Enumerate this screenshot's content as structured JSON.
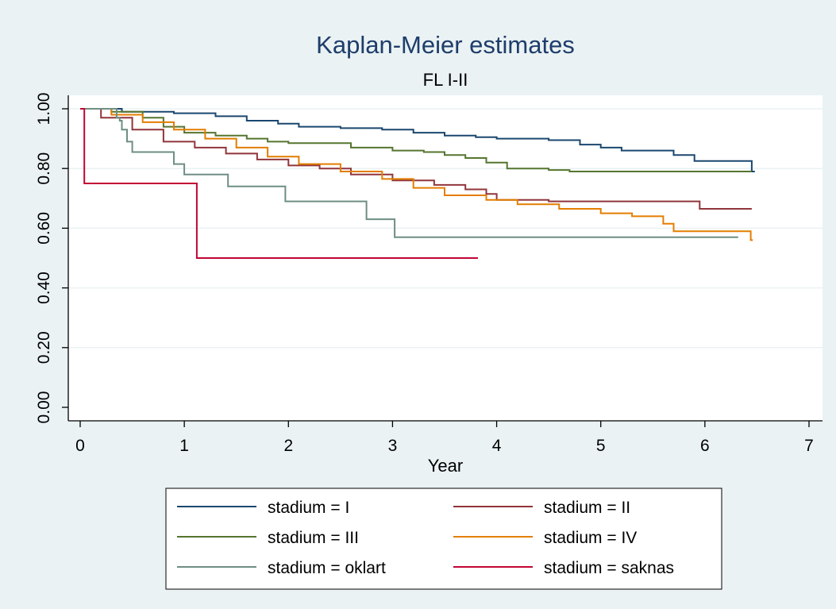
{
  "chart_data": {
    "type": "line",
    "title": "Kaplan-Meier estimates",
    "subtitle": "FL I-II",
    "xlabel": "Year",
    "ylabel": "",
    "xlim": [
      0,
      7
    ],
    "ylim": [
      0,
      1
    ],
    "x_ticks": [
      "0",
      "1",
      "2",
      "3",
      "4",
      "5",
      "6",
      "7"
    ],
    "y_ticks": [
      "0.00",
      "0.20",
      "0.40",
      "0.60",
      "0.80",
      "1.00"
    ],
    "grid": true,
    "legend_position": "bottom",
    "series": [
      {
        "name": "stadium = I",
        "color": "#1a476f",
        "points": [
          [
            0,
            1.0
          ],
          [
            0.4,
            0.99
          ],
          [
            0.9,
            0.985
          ],
          [
            1.3,
            0.975
          ],
          [
            1.6,
            0.96
          ],
          [
            1.9,
            0.95
          ],
          [
            2.1,
            0.94
          ],
          [
            2.5,
            0.935
          ],
          [
            2.9,
            0.93
          ],
          [
            3.2,
            0.92
          ],
          [
            3.5,
            0.91
          ],
          [
            3.8,
            0.905
          ],
          [
            4.0,
            0.9
          ],
          [
            4.3,
            0.9
          ],
          [
            4.5,
            0.895
          ],
          [
            4.8,
            0.88
          ],
          [
            5.0,
            0.87
          ],
          [
            5.2,
            0.86
          ],
          [
            5.6,
            0.86
          ],
          [
            5.7,
            0.845
          ],
          [
            5.9,
            0.825
          ],
          [
            6.1,
            0.825
          ],
          [
            6.45,
            0.825
          ],
          [
            6.45,
            0.79
          ],
          [
            6.48,
            0.79
          ]
        ]
      },
      {
        "name": "stadium = II",
        "color": "#90353b",
        "points": [
          [
            0,
            1.0
          ],
          [
            0.2,
            0.97
          ],
          [
            0.5,
            0.93
          ],
          [
            0.8,
            0.89
          ],
          [
            1.1,
            0.87
          ],
          [
            1.4,
            0.85
          ],
          [
            1.7,
            0.83
          ],
          [
            2.0,
            0.81
          ],
          [
            2.3,
            0.8
          ],
          [
            2.6,
            0.78
          ],
          [
            3.0,
            0.76
          ],
          [
            3.4,
            0.745
          ],
          [
            3.7,
            0.73
          ],
          [
            3.9,
            0.715
          ],
          [
            4.0,
            0.695
          ],
          [
            4.5,
            0.69
          ],
          [
            5.0,
            0.69
          ],
          [
            5.9,
            0.69
          ],
          [
            5.95,
            0.665
          ],
          [
            6.45,
            0.665
          ]
        ]
      },
      {
        "name": "stadium = III",
        "color": "#55752f",
        "points": [
          [
            0,
            1.0
          ],
          [
            0.3,
            0.99
          ],
          [
            0.6,
            0.97
          ],
          [
            0.8,
            0.94
          ],
          [
            1.0,
            0.92
          ],
          [
            1.3,
            0.91
          ],
          [
            1.6,
            0.9
          ],
          [
            1.8,
            0.89
          ],
          [
            2.0,
            0.885
          ],
          [
            2.3,
            0.885
          ],
          [
            2.6,
            0.87
          ],
          [
            3.0,
            0.86
          ],
          [
            3.3,
            0.855
          ],
          [
            3.5,
            0.845
          ],
          [
            3.7,
            0.835
          ],
          [
            3.9,
            0.82
          ],
          [
            4.1,
            0.8
          ],
          [
            4.5,
            0.795
          ],
          [
            4.7,
            0.79
          ],
          [
            5.5,
            0.79
          ],
          [
            6.45,
            0.79
          ]
        ]
      },
      {
        "name": "stadium = IV",
        "color": "#e37e00",
        "points": [
          [
            0,
            1.0
          ],
          [
            0.3,
            0.98
          ],
          [
            0.6,
            0.955
          ],
          [
            0.9,
            0.93
          ],
          [
            1.2,
            0.9
          ],
          [
            1.5,
            0.87
          ],
          [
            1.8,
            0.84
          ],
          [
            2.1,
            0.815
          ],
          [
            2.5,
            0.79
          ],
          [
            2.9,
            0.765
          ],
          [
            3.2,
            0.735
          ],
          [
            3.5,
            0.71
          ],
          [
            3.9,
            0.695
          ],
          [
            4.2,
            0.68
          ],
          [
            4.6,
            0.665
          ],
          [
            5.0,
            0.65
          ],
          [
            5.3,
            0.64
          ],
          [
            5.6,
            0.615
          ],
          [
            5.7,
            0.59
          ],
          [
            6.0,
            0.59
          ],
          [
            6.44,
            0.59
          ],
          [
            6.44,
            0.56
          ],
          [
            6.46,
            0.56
          ]
        ]
      },
      {
        "name": "stadium = oklart",
        "color": "#6e8e84",
        "points": [
          [
            0,
            1.0
          ],
          [
            0.33,
            1.0
          ],
          [
            0.35,
            0.97
          ],
          [
            0.38,
            0.96
          ],
          [
            0.4,
            0.93
          ],
          [
            0.45,
            0.89
          ],
          [
            0.5,
            0.855
          ],
          [
            0.88,
            0.855
          ],
          [
            0.9,
            0.815
          ],
          [
            1.0,
            0.78
          ],
          [
            1.4,
            0.78
          ],
          [
            1.42,
            0.74
          ],
          [
            1.95,
            0.74
          ],
          [
            1.97,
            0.69
          ],
          [
            2.73,
            0.69
          ],
          [
            2.75,
            0.63
          ],
          [
            3.0,
            0.63
          ],
          [
            3.02,
            0.57
          ],
          [
            6.32,
            0.57
          ]
        ]
      },
      {
        "name": "stadium = saknas",
        "color": "#c10534",
        "points": [
          [
            0,
            1.0
          ],
          [
            0.04,
            1.0
          ],
          [
            0.04,
            0.75
          ],
          [
            1.12,
            0.75
          ],
          [
            1.12,
            0.5
          ],
          [
            3.82,
            0.5
          ]
        ]
      }
    ]
  }
}
